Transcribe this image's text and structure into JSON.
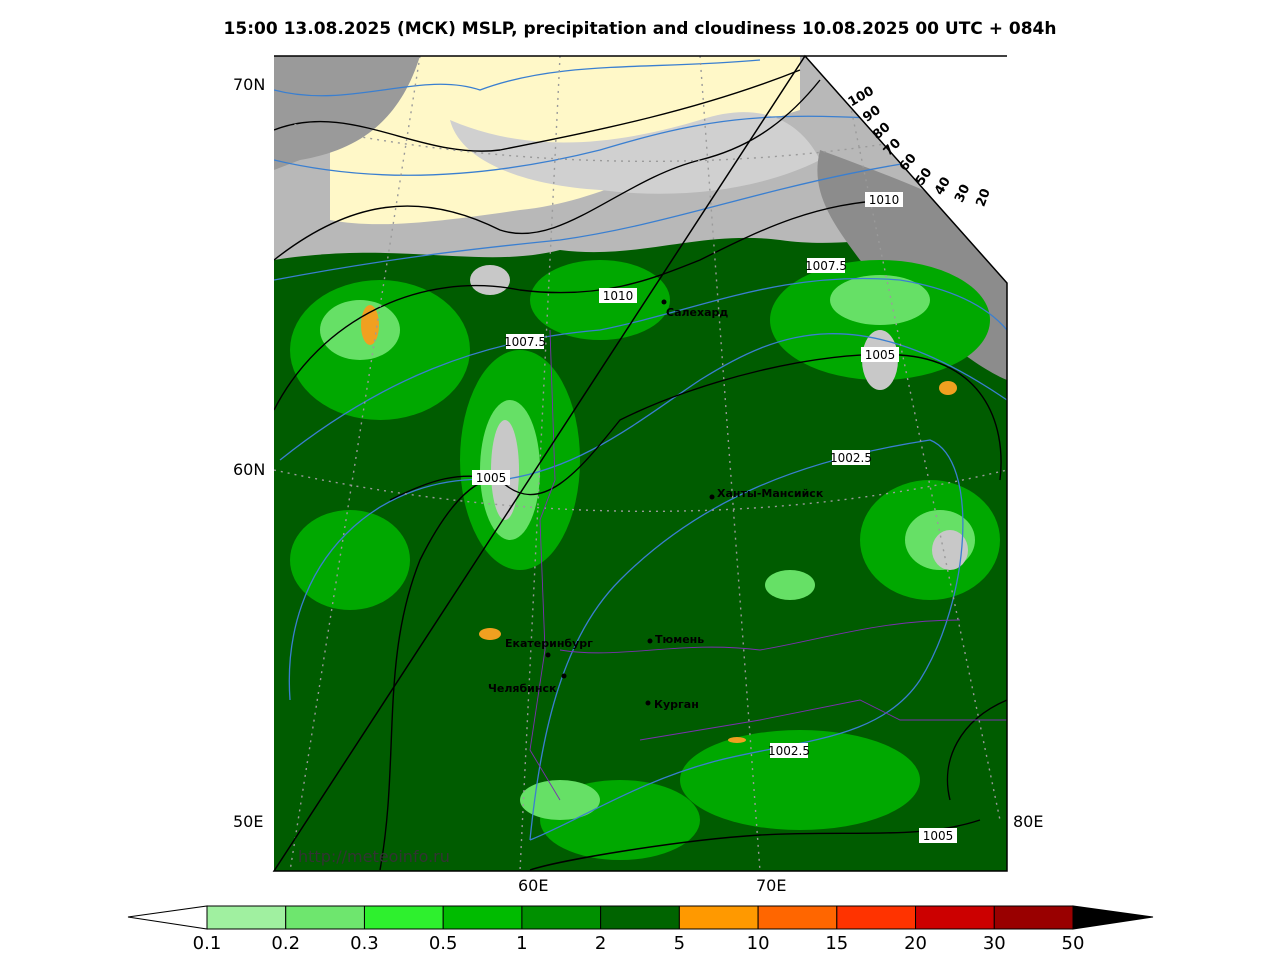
{
  "header": {
    "title": "15:00 13.08.2025 (МСК) MSLP, precipitation and cloudiness 10.08.2025 00 UTC + 084h"
  },
  "map": {
    "lat_labels": [
      "70N",
      "60N"
    ],
    "lon_labels": [
      "50E",
      "60E",
      "70E",
      "80E"
    ],
    "cities": [
      "Салехард",
      "Ханты-Мансийск",
      "Екатеринбург",
      "Тюмень",
      "Челябинск",
      "Курган"
    ],
    "isobar_labels": [
      "1010",
      "1010",
      "1007.5",
      "1007.5",
      "1005",
      "1005",
      "1002.5",
      "1002.5",
      "1005"
    ],
    "cloud_scale": [
      "100",
      "90",
      "80",
      "70",
      "60",
      "50",
      "40",
      "30",
      "20"
    ],
    "url": "http://meteoinfo.ru"
  },
  "colorbar": {
    "labels": [
      "0.1",
      "0.2",
      "0.3",
      "0.5",
      "1",
      "2",
      "5",
      "10",
      "15",
      "20",
      "30",
      "50"
    ],
    "colors": [
      "#a0f0a0",
      "#6ee66e",
      "#2ef02e",
      "#00bb00",
      "#009000",
      "#006400",
      "#ff9900",
      "#ff6600",
      "#ff3300",
      "#cc0000",
      "#990000"
    ]
  }
}
